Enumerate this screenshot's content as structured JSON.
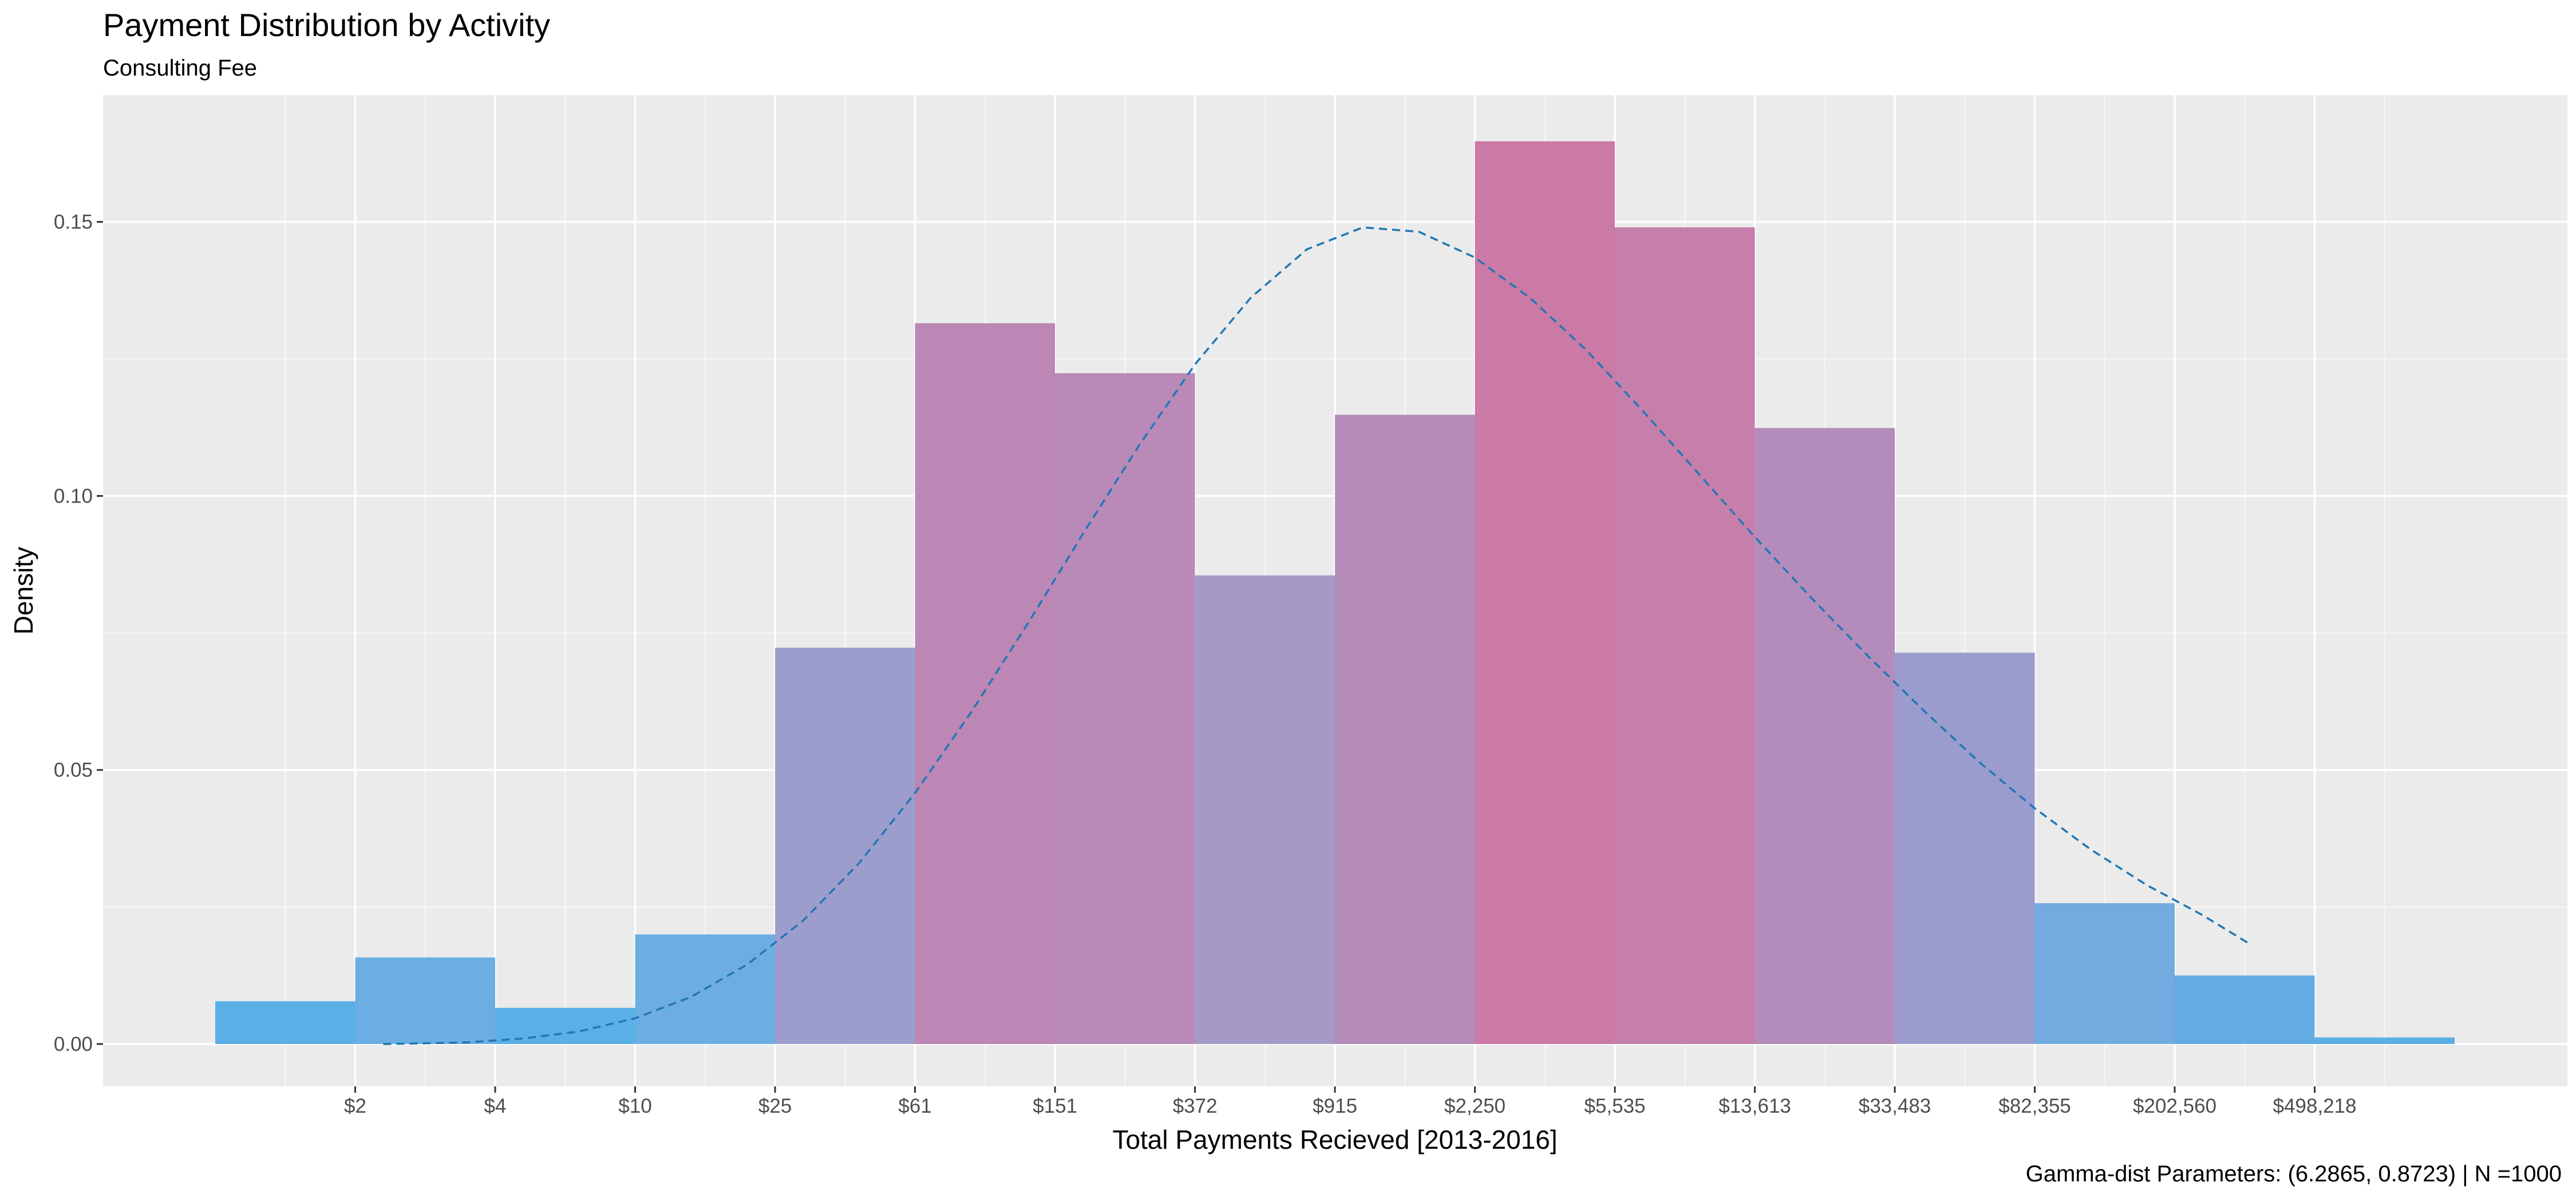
{
  "chart_data": {
    "type": "bar",
    "title": "Payment Distribution by Activity",
    "subtitle": "Consulting Fee",
    "xlabel": "Total Payments Recieved [2013-2016]",
    "ylabel": "Density",
    "caption": "Gamma-dist Parameters: (6.2865, 0.8723) | N =1000",
    "x_scale": "log",
    "x_tick_labels": [
      "$2",
      "$4",
      "$10",
      "$25",
      "$61",
      "$151",
      "$372",
      "$915",
      "$2,250",
      "$5,535",
      "$13,613",
      "$33,483",
      "$82,355",
      "$202,560",
      "$498,218"
    ],
    "ylim": [
      0,
      0.172
    ],
    "y_ticks": [
      0,
      0.05,
      0.1,
      0.15
    ],
    "y_tick_labels": [
      "0.00",
      "0.05",
      "0.10",
      "0.15"
    ],
    "grid": true,
    "bins": [
      {
        "value": 0.0078,
        "color": "#5aafe6"
      },
      {
        "value": 0.0158,
        "color": "#6aaee3"
      },
      {
        "value": 0.0066,
        "color": "#5aafe6"
      },
      {
        "value": 0.02,
        "color": "#6caee2"
      },
      {
        "value": 0.0723,
        "color": "#9c9dcc"
      },
      {
        "value": 0.1315,
        "color": "#bc86b5"
      },
      {
        "value": 0.1224,
        "color": "#b98ab8"
      },
      {
        "value": 0.0855,
        "color": "#a59ac6"
      },
      {
        "value": 0.1148,
        "color": "#b58bba"
      },
      {
        "value": 0.1647,
        "color": "#cb79a5"
      },
      {
        "value": 0.149,
        "color": "#c67fab"
      },
      {
        "value": 0.1124,
        "color": "#b48cbb"
      },
      {
        "value": 0.0714,
        "color": "#9a9ccd"
      },
      {
        "value": 0.0257,
        "color": "#72abdf"
      },
      {
        "value": 0.0125,
        "color": "#63ace3"
      },
      {
        "value": 0.0012,
        "color": "#5aafe6"
      }
    ],
    "fitted_curve": {
      "style": "dashed",
      "color": "#1f78b4",
      "points": [
        [
          1.2,
          0.0
        ],
        [
          1.44,
          0.0001
        ],
        [
          1.8,
          0.0003
        ],
        [
          2.2,
          0.001
        ],
        [
          2.6,
          0.0023
        ],
        [
          3.0,
          0.0047
        ],
        [
          3.4,
          0.0086
        ],
        [
          3.8,
          0.0145
        ],
        [
          4.2,
          0.0225
        ],
        [
          4.6,
          0.033
        ],
        [
          5.0,
          0.0458
        ],
        [
          5.4,
          0.0605
        ],
        [
          5.8,
          0.0765
        ],
        [
          6.2,
          0.0931
        ],
        [
          6.6,
          0.1092
        ],
        [
          7.0,
          0.124
        ],
        [
          7.4,
          0.1362
        ],
        [
          7.8,
          0.145
        ],
        [
          8.2,
          0.149
        ],
        [
          8.6,
          0.1482
        ],
        [
          9.0,
          0.1435
        ],
        [
          9.4,
          0.136
        ],
        [
          9.8,
          0.1265
        ],
        [
          10.2,
          0.1155
        ],
        [
          10.6,
          0.104
        ],
        [
          11.0,
          0.0925
        ],
        [
          11.4,
          0.0815
        ],
        [
          11.8,
          0.071
        ],
        [
          12.2,
          0.061
        ],
        [
          12.6,
          0.0515
        ],
        [
          13.0,
          0.043
        ],
        [
          13.4,
          0.0355
        ],
        [
          13.8,
          0.029
        ],
        [
          14.2,
          0.0235
        ],
        [
          14.52,
          0.0185
        ]
      ]
    }
  }
}
